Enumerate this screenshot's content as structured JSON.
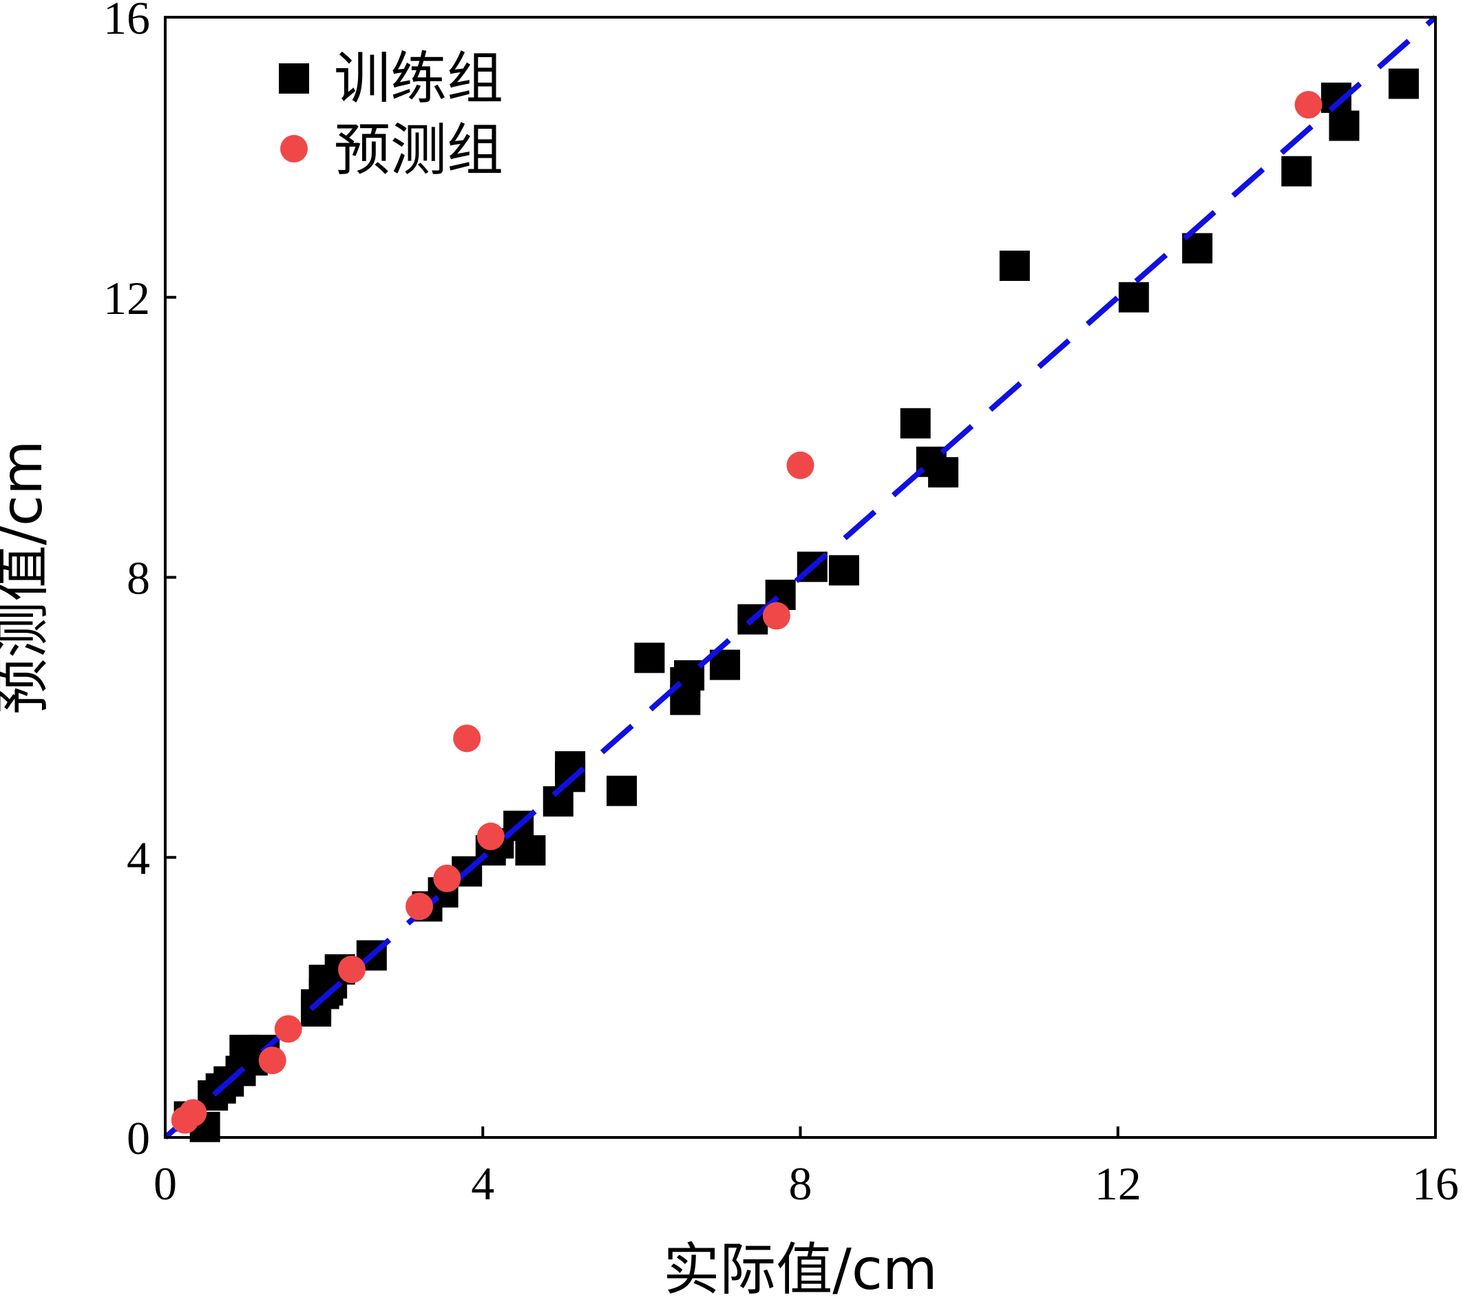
{
  "chart_data": {
    "type": "scatter",
    "xlabel": "实际值/cm",
    "ylabel": "预测值/cm",
    "xlim": [
      0,
      16
    ],
    "ylim": [
      0,
      16
    ],
    "xticks": [
      "0",
      "4",
      "8",
      "12",
      "16"
    ],
    "yticks": [
      "0",
      "4",
      "8",
      "12",
      "16"
    ],
    "grid": false,
    "legend_position": "top-left",
    "fit_line": {
      "style": "dashed",
      "color": "#1010e0",
      "x": [
        0,
        16
      ],
      "y": [
        0,
        16
      ]
    },
    "series": [
      {
        "name": "训练组",
        "marker": "square",
        "color": "#000000",
        "points": [
          [
            0.3,
            0.3
          ],
          [
            0.5,
            0.15
          ],
          [
            0.6,
            0.6
          ],
          [
            0.7,
            0.7
          ],
          [
            0.8,
            0.8
          ],
          [
            0.95,
            0.95
          ],
          [
            1.0,
            1.25
          ],
          [
            1.1,
            1.1
          ],
          [
            1.25,
            1.25
          ],
          [
            1.9,
            1.9
          ],
          [
            1.9,
            1.8
          ],
          [
            2.0,
            2.05
          ],
          [
            2.0,
            2.25
          ],
          [
            2.1,
            2.2
          ],
          [
            2.05,
            2.1
          ],
          [
            2.2,
            2.4
          ],
          [
            2.6,
            2.6
          ],
          [
            3.3,
            3.3
          ],
          [
            3.5,
            3.5
          ],
          [
            3.8,
            3.8
          ],
          [
            4.1,
            4.1
          ],
          [
            4.2,
            4.2
          ],
          [
            4.45,
            4.45
          ],
          [
            4.6,
            4.1
          ],
          [
            4.95,
            4.8
          ],
          [
            5.1,
            5.15
          ],
          [
            5.1,
            5.3
          ],
          [
            5.75,
            4.95
          ],
          [
            6.1,
            6.85
          ],
          [
            6.55,
            6.5
          ],
          [
            6.6,
            6.6
          ],
          [
            6.55,
            6.25
          ],
          [
            7.05,
            6.75
          ],
          [
            7.4,
            7.4
          ],
          [
            7.75,
            7.75
          ],
          [
            8.15,
            8.15
          ],
          [
            8.55,
            8.1
          ],
          [
            9.45,
            10.2
          ],
          [
            9.65,
            9.65
          ],
          [
            9.8,
            9.5
          ],
          [
            10.7,
            12.45
          ],
          [
            12.2,
            12.0
          ],
          [
            13.0,
            12.7
          ],
          [
            14.25,
            13.8
          ],
          [
            14.75,
            14.85
          ],
          [
            14.85,
            14.45
          ],
          [
            15.6,
            15.05
          ]
        ]
      },
      {
        "name": "预测组",
        "marker": "circle",
        "color": "#f04848",
        "points": [
          [
            0.25,
            0.25
          ],
          [
            0.35,
            0.35
          ],
          [
            1.35,
            1.1
          ],
          [
            1.55,
            1.55
          ],
          [
            2.35,
            2.4
          ],
          [
            3.2,
            3.3
          ],
          [
            3.55,
            3.7
          ],
          [
            3.8,
            5.7
          ],
          [
            4.1,
            4.3
          ],
          [
            7.7,
            7.45
          ],
          [
            8.0,
            9.6
          ],
          [
            14.4,
            14.75
          ]
        ]
      }
    ]
  }
}
